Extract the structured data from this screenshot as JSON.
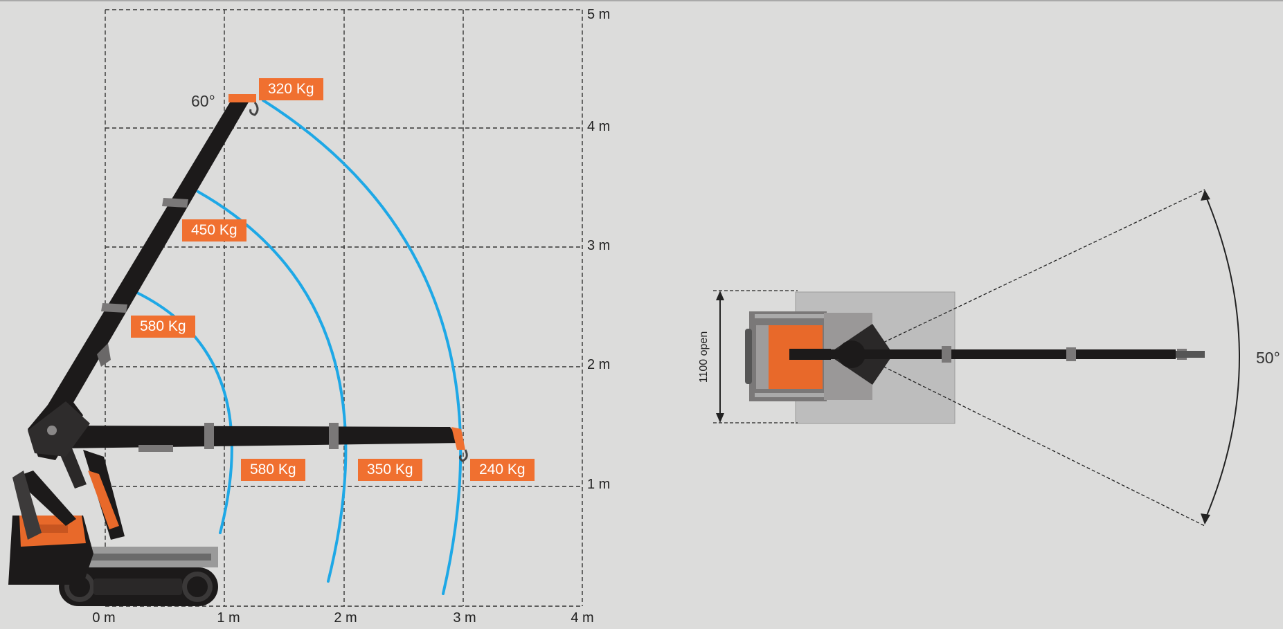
{
  "side_view": {
    "x_axis_labels": [
      "0 m",
      "1 m",
      "2 m",
      "3 m",
      "4 m"
    ],
    "y_axis_labels": [
      "5 m",
      "4 m",
      "3 m",
      "2 m",
      "1 m"
    ],
    "boom_angle": "60°",
    "elevated_loads": [
      "320 Kg",
      "450 Kg",
      "580 Kg"
    ],
    "horizontal_loads": [
      "580 Kg",
      "350 Kg",
      "240 Kg"
    ]
  },
  "top_view": {
    "width_label": "1100 open",
    "slew_angle": "50°"
  },
  "colors": {
    "background": "#dcdcdb",
    "accent_orange": "#f07030",
    "arc_blue": "#1ea8e6",
    "machine_black": "#1c1a1a",
    "grid_dashes": "#333333"
  }
}
